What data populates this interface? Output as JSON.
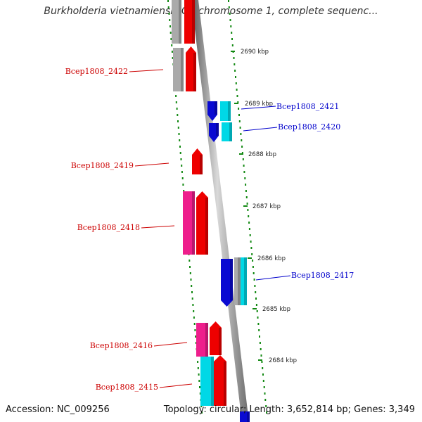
{
  "title": "Burkholderia vietnamiensis G4 chromosome 1, complete sequenc...",
  "footer": {
    "accession": "Accession: NC_009256",
    "summary": "Topology: circular; Length: 3,652,814 bp; Genes: 3,349"
  },
  "colors": {
    "forward_red": "#ee0000",
    "forward_pink": "#ee1e8c",
    "reverse_blue": "#0a0ad2",
    "reverse_cyan": "#00d8e6",
    "gray": "#aaaaaa",
    "tick_green": "#118811",
    "label_red": "#cc0000",
    "label_blue": "#0000cc"
  },
  "kbp_ticks": [
    "2690 kbp",
    "2689 kbp",
    "2688 kbp",
    "2687 kbp",
    "2686 kbp",
    "2685 kbp",
    "2684 kbp"
  ],
  "gene_labels_left": [
    "Bcep1808_2422",
    "Bcep1808_2419",
    "Bcep1808_2418",
    "Bcep1808_2416",
    "Bcep1808_2415"
  ],
  "gene_labels_right": [
    "Bcep1808_2421",
    "Bcep1808_2420",
    "Bcep1808_2417"
  ]
}
